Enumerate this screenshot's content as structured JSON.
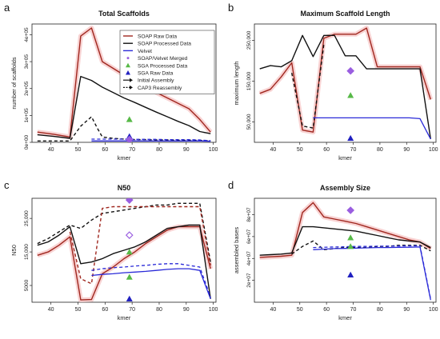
{
  "colors": {
    "soap_raw": "#a0271f",
    "soap_raw_shade": "#f6c4c4",
    "soap_processed": "#111111",
    "velvet": "#2a2ad8",
    "soap_velvet_merged": "#9a5ee0",
    "sga_processed": "#57b947",
    "sga_raw": "#2020c0",
    "initial_assembly": "#111111",
    "cap3_reassembly": "#111111"
  },
  "legend": {
    "placement": "top-right of panel a",
    "entries": [
      {
        "key": "soap_raw",
        "label": "SOAP Raw Data",
        "symbol": "line"
      },
      {
        "key": "soap_processed",
        "label": "SOAP Processed Data",
        "symbol": "line"
      },
      {
        "key": "velvet",
        "label": "Velvet",
        "symbol": "line"
      },
      {
        "key": "soap_velvet_merged",
        "label": "SOAP/Velvet Merged",
        "symbol": "diamond-small"
      },
      {
        "key": "sga_processed",
        "label": "SGA Processed Data",
        "symbol": "triangle"
      },
      {
        "key": "sga_raw",
        "label": "SGA Raw Data",
        "symbol": "triangle"
      },
      {
        "key": "initial_assembly",
        "label": "Initial Assembly",
        "symbol": "arrow-solid"
      },
      {
        "key": "cap3_reassembly",
        "label": "CAP3 Reassembly",
        "symbol": "arrow-dashed"
      }
    ]
  },
  "chart_data": [
    {
      "panel": "a",
      "type": "line",
      "title": "Total Scaffolds",
      "xlabel": "kmer",
      "ylabel": "number of scaffolds",
      "xlim": [
        33,
        101
      ],
      "ylim": [
        0,
        440000
      ],
      "xticks": [
        40,
        50,
        60,
        70,
        80,
        90,
        100
      ],
      "yticks": [
        0,
        100000,
        200000,
        300000,
        400000
      ],
      "ytick_labels": [
        "0e+00",
        "1e+05",
        "2e+05",
        "3e+05",
        "4e+05"
      ],
      "series": [
        {
          "key": "soap_raw",
          "style": "solid",
          "shade": true,
          "x": [
            35,
            41,
            47,
            51,
            55,
            59,
            63,
            67,
            71,
            75,
            79,
            83,
            87,
            91,
            95,
            99
          ],
          "y": [
            38000,
            30000,
            20000,
            395000,
            425000,
            300000,
            275000,
            250000,
            228000,
            205000,
            185000,
            165000,
            145000,
            125000,
            85000,
            38000
          ]
        },
        {
          "key": "soap_processed",
          "style": "solid",
          "x": [
            35,
            41,
            47,
            51,
            55,
            59,
            63,
            67,
            71,
            75,
            79,
            83,
            87,
            91,
            95,
            99
          ],
          "y": [
            28000,
            22000,
            15000,
            245000,
            230000,
            205000,
            185000,
            165000,
            148000,
            130000,
            112000,
            95000,
            78000,
            62000,
            40000,
            32000
          ]
        },
        {
          "key": "cap3_reassembly",
          "style": "dashed",
          "x": [
            35,
            41,
            47,
            51,
            55,
            57,
            59,
            63,
            67,
            71,
            75,
            79,
            83,
            87,
            91,
            95,
            99
          ],
          "y": [
            5000,
            5000,
            5000,
            60000,
            95000,
            55000,
            20000,
            15000,
            12000,
            10000,
            10000,
            9000,
            9000,
            8000,
            8000,
            7000,
            5000
          ]
        },
        {
          "key": "velvet",
          "style": "solid",
          "x": [
            55,
            59,
            63,
            67,
            71,
            75,
            79,
            83,
            87,
            91,
            95,
            99
          ],
          "y": [
            5000,
            5000,
            5000,
            5000,
            5000,
            5000,
            5000,
            5000,
            5000,
            5000,
            5000,
            4000
          ]
        },
        {
          "key": "velvet",
          "style": "dashed",
          "x": [
            55,
            59,
            63,
            67,
            71,
            75,
            79,
            83,
            87,
            91,
            95,
            99
          ],
          "y": [
            12000,
            12000,
            12000,
            12000,
            11000,
            11000,
            11000,
            10000,
            10000,
            10000,
            9000,
            6000
          ]
        }
      ],
      "points": [
        {
          "key": "sga_processed",
          "marker": "triangle",
          "x": 69,
          "y": 85000
        },
        {
          "key": "sga_raw",
          "marker": "triangle",
          "x": 69,
          "y": 22000
        },
        {
          "key": "soap_velvet_merged",
          "marker": "diamond",
          "x": 69,
          "y": 10000
        }
      ]
    },
    {
      "panel": "b",
      "type": "line",
      "title": "Maximum Scaffold Length",
      "xlabel": "kmer",
      "ylabel": "maximum length",
      "xlim": [
        33,
        101
      ],
      "ylim": [
        0,
        290000
      ],
      "xticks": [
        40,
        50,
        60,
        70,
        80,
        90,
        100
      ],
      "yticks": [
        50000,
        150000,
        250000
      ],
      "ytick_labels": [
        "50,000",
        "150,000",
        "250,000"
      ],
      "series": [
        {
          "key": "soap_raw",
          "style": "solid",
          "shade": true,
          "x": [
            35,
            39,
            43,
            47,
            51,
            55,
            59,
            63,
            67,
            71,
            75,
            79,
            83,
            87,
            91,
            95,
            99
          ],
          "y": [
            120000,
            130000,
            160000,
            195000,
            30000,
            25000,
            255000,
            265000,
            265000,
            265000,
            280000,
            185000,
            185000,
            185000,
            185000,
            185000,
            105000
          ]
        },
        {
          "key": "soap_processed",
          "style": "solid",
          "x": [
            35,
            39,
            43,
            47,
            51,
            55,
            59,
            63,
            67,
            71,
            75,
            79,
            83,
            87,
            91,
            95,
            99
          ],
          "y": [
            180000,
            188000,
            185000,
            200000,
            262000,
            210000,
            262000,
            262000,
            212000,
            212000,
            180000,
            180000,
            180000,
            180000,
            180000,
            180000,
            8000
          ]
        },
        {
          "key": "cap3_reassembly",
          "style": "dashed",
          "x": [
            47,
            51,
            55,
            59
          ],
          "y": [
            170000,
            40000,
            35000,
            240000
          ]
        },
        {
          "key": "velvet",
          "style": "solid",
          "x": [
            55,
            59,
            63,
            67,
            71,
            75,
            79,
            83,
            87,
            91,
            95,
            99
          ],
          "y": [
            60000,
            60000,
            60000,
            60000,
            60000,
            60000,
            60000,
            60000,
            60000,
            60000,
            58000,
            8000
          ]
        }
      ],
      "points": [
        {
          "key": "soap_velvet_merged",
          "marker": "diamond",
          "x": 69,
          "y": 175000
        },
        {
          "key": "sga_processed",
          "marker": "triangle",
          "x": 69,
          "y": 115000
        },
        {
          "key": "sga_raw",
          "marker": "triangle",
          "x": 69,
          "y": 10000
        }
      ]
    },
    {
      "panel": "c",
      "type": "line",
      "title": "N50",
      "xlabel": "kmer",
      "ylabel": "N50",
      "xlim": [
        33,
        101
      ],
      "ylim": [
        0,
        31000
      ],
      "xticks": [
        40,
        50,
        60,
        70,
        80,
        90,
        100
      ],
      "yticks": [
        5000,
        15000,
        25000
      ],
      "ytick_labels": [
        "5000",
        "15,000",
        "25,000"
      ],
      "series": [
        {
          "key": "soap_raw",
          "style": "solid",
          "shade": true,
          "x": [
            35,
            39,
            43,
            47,
            51,
            55,
            59,
            63,
            67,
            71,
            75,
            79,
            83,
            87,
            91,
            95,
            99
          ],
          "y": [
            14000,
            15000,
            17000,
            19500,
            700,
            800,
            8500,
            10500,
            13000,
            15000,
            17500,
            19500,
            21500,
            22500,
            22500,
            22500,
            10000
          ]
        },
        {
          "key": "soap_processed",
          "style": "solid",
          "x": [
            35,
            39,
            43,
            47,
            51,
            55,
            59,
            63,
            67,
            71,
            75,
            79,
            83,
            87,
            91,
            95,
            99
          ],
          "y": [
            17000,
            18000,
            20000,
            22500,
            11500,
            12000,
            13000,
            14500,
            15500,
            16500,
            18000,
            20000,
            22000,
            22500,
            23000,
            23000,
            1000
          ]
        },
        {
          "key": "cap3_reassembly",
          "style": "dashed",
          "x": [
            35,
            39,
            43,
            47,
            51,
            55,
            59,
            63,
            67,
            71,
            75,
            79,
            83,
            87,
            91,
            95,
            99
          ],
          "y": [
            17500,
            19000,
            21000,
            23000,
            22000,
            24500,
            26500,
            27000,
            27500,
            28000,
            28500,
            29000,
            29000,
            29500,
            29500,
            29500,
            12000
          ]
        },
        {
          "key": "soap_raw",
          "style": "dashed",
          "x": [
            47,
            51,
            55,
            59,
            63,
            67,
            71,
            75,
            79,
            83,
            87,
            91,
            95,
            99
          ],
          "y": [
            21000,
            7000,
            5500,
            28000,
            28500,
            28500,
            28500,
            28500,
            28500,
            28500,
            28500,
            28500,
            28500,
            11000
          ]
        },
        {
          "key": "velvet",
          "style": "solid",
          "x": [
            55,
            59,
            63,
            67,
            71,
            75,
            79,
            83,
            87,
            91,
            95,
            99
          ],
          "y": [
            8000,
            8300,
            8500,
            8800,
            9000,
            9200,
            9500,
            9800,
            10000,
            10000,
            9500,
            1000
          ]
        },
        {
          "key": "velvet",
          "style": "dashed",
          "x": [
            55,
            59,
            63,
            67,
            71,
            75,
            79,
            83,
            87,
            91,
            95,
            99
          ],
          "y": [
            9500,
            10000,
            10300,
            10500,
            10800,
            11000,
            11300,
            11500,
            11500,
            11000,
            10500,
            1500
          ]
        }
      ],
      "points": [
        {
          "key": "soap_velvet_merged",
          "marker": "diamond",
          "x": 69,
          "y": 30500
        },
        {
          "key": "soap_velvet_merged",
          "marker": "diamond-open",
          "x": 69,
          "y": 20000
        },
        {
          "key": "sga_processed",
          "marker": "triangle",
          "x": 69,
          "y": 15000
        },
        {
          "key": "sga_processed",
          "marker": "triangle",
          "x": 69,
          "y": 7500
        },
        {
          "key": "sga_raw",
          "marker": "triangle",
          "x": 69,
          "y": 1000
        }
      ]
    },
    {
      "panel": "d",
      "type": "line",
      "title": "Assembly Size",
      "xlabel": "kmer",
      "ylabel": "assembled bases",
      "xlim": [
        33,
        101
      ],
      "ylim": [
        0,
        95000000
      ],
      "xticks": [
        40,
        50,
        60,
        70,
        80,
        90,
        100
      ],
      "yticks": [
        20000000,
        40000000,
        60000000,
        80000000
      ],
      "ytick_labels": [
        "2e+07",
        "4e+07",
        "6e+07",
        "8e+07"
      ],
      "series": [
        {
          "key": "soap_raw",
          "style": "solid",
          "shade": true,
          "x": [
            35,
            39,
            43,
            47,
            51,
            55,
            59,
            63,
            67,
            71,
            75,
            79,
            83,
            87,
            91,
            95,
            99
          ],
          "y": [
            41000000,
            41500000,
            42000000,
            43000000,
            82000000,
            91000000,
            78000000,
            76000000,
            74000000,
            72000000,
            69000000,
            66000000,
            63000000,
            60000000,
            57000000,
            55000000,
            49000000
          ]
        },
        {
          "key": "soap_processed",
          "style": "solid",
          "x": [
            35,
            39,
            43,
            47,
            51,
            55,
            59,
            63,
            67,
            71,
            75,
            79,
            83,
            87,
            91,
            95,
            99
          ],
          "y": [
            43000000,
            43500000,
            44000000,
            45000000,
            69000000,
            69000000,
            68000000,
            67000000,
            66000000,
            65000000,
            63000000,
            61000000,
            59000000,
            57000000,
            56000000,
            55000000,
            50000000
          ]
        },
        {
          "key": "cap3_reassembly",
          "style": "dashed",
          "x": [
            47,
            51,
            55,
            59,
            63,
            67,
            71,
            75,
            79,
            83,
            87,
            91,
            95,
            99
          ],
          "y": [
            44000000,
            51000000,
            56000000,
            48000000,
            49000000,
            50000000,
            50000000,
            50000000,
            51000000,
            51000000,
            52000000,
            52000000,
            52000000,
            47000000
          ]
        },
        {
          "key": "velvet",
          "style": "solid",
          "x": [
            55,
            59,
            63,
            67,
            71,
            75,
            79,
            83,
            87,
            91,
            95,
            99
          ],
          "y": [
            48000000,
            48500000,
            49000000,
            49200000,
            49500000,
            49700000,
            50000000,
            50000000,
            50200000,
            50300000,
            50500000,
            2000000
          ]
        },
        {
          "key": "velvet",
          "style": "dashed",
          "x": [
            55,
            59,
            63,
            67,
            71,
            75,
            79,
            83,
            87,
            91,
            95,
            99
          ],
          "y": [
            50000000,
            50200000,
            50500000,
            50700000,
            51000000,
            51000000,
            51200000,
            51300000,
            51400000,
            51500000,
            51600000,
            3000000
          ]
        }
      ],
      "points": [
        {
          "key": "soap_velvet_merged",
          "marker": "diamond",
          "x": 69,
          "y": 84000000
        },
        {
          "key": "sga_processed",
          "marker": "triangle",
          "x": 69,
          "y": 59000000
        },
        {
          "key": "sga_processed",
          "marker": "triangle",
          "x": 69,
          "y": 51000000
        },
        {
          "key": "sga_raw",
          "marker": "triangle",
          "x": 69,
          "y": 25000000
        }
      ]
    }
  ]
}
